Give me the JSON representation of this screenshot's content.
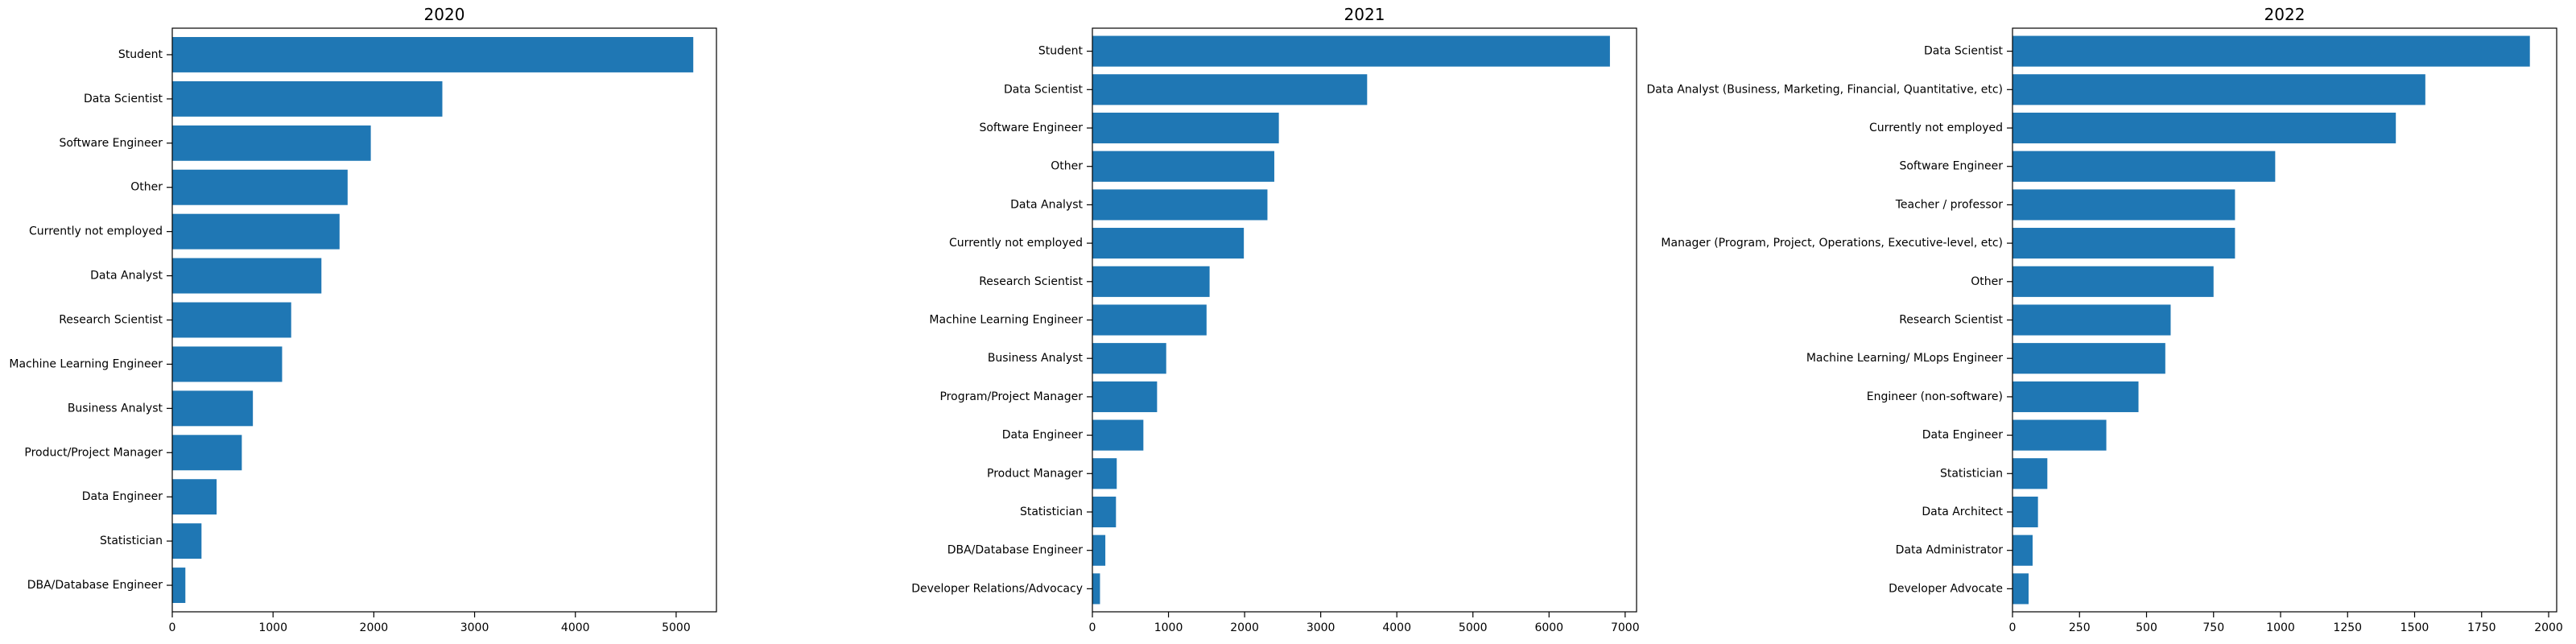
{
  "colors": {
    "bar": "#1f77b4"
  },
  "chart_data": [
    {
      "type": "bar",
      "orientation": "horizontal",
      "title": "2020",
      "xlim": [
        0,
        5400
      ],
      "xticks": [
        0,
        1000,
        2000,
        3000,
        4000,
        5000
      ],
      "categories": [
        "Student",
        "Data Scientist",
        "Software Engineer",
        "Other",
        "Currently not employed",
        "Data Analyst",
        "Research Scientist",
        "Machine Learning Engineer",
        "Business Analyst",
        "Product/Project Manager",
        "Data Engineer",
        "Statistician",
        "DBA/Database Engineer"
      ],
      "values": [
        5170,
        2680,
        1970,
        1740,
        1660,
        1480,
        1180,
        1090,
        800,
        690,
        440,
        290,
        130
      ]
    },
    {
      "type": "bar",
      "orientation": "horizontal",
      "title": "2021",
      "xlim": [
        0,
        7150
      ],
      "xticks": [
        0,
        1000,
        2000,
        3000,
        4000,
        5000,
        6000,
        7000
      ],
      "categories": [
        "Student",
        "Data Scientist",
        "Software Engineer",
        "Other",
        "Data Analyst",
        "Currently not employed",
        "Research Scientist",
        "Machine Learning Engineer",
        "Business Analyst",
        "Program/Project Manager",
        "Data Engineer",
        "Product Manager",
        "Statistician",
        "DBA/Database Engineer",
        "Developer Relations/Advocacy"
      ],
      "values": [
        6800,
        3610,
        2450,
        2390,
        2300,
        1990,
        1540,
        1500,
        970,
        850,
        670,
        320,
        310,
        170,
        100
      ]
    },
    {
      "type": "bar",
      "orientation": "horizontal",
      "title": "2022",
      "xlim": [
        0,
        2030
      ],
      "xticks": [
        0,
        250,
        500,
        750,
        1000,
        1250,
        1500,
        1750,
        2000
      ],
      "categories": [
        "Data Scientist",
        "Data Analyst (Business, Marketing, Financial, Quantitative, etc)",
        "Currently not employed",
        "Software Engineer",
        "Teacher / professor",
        "Manager (Program, Project, Operations, Executive-level, etc)",
        "Other",
        "Research Scientist",
        "Machine Learning/ MLops Engineer",
        "Engineer (non-software)",
        "Data Engineer",
        "Statistician",
        "Data Architect",
        "Data Administrator",
        "Developer Advocate"
      ],
      "values": [
        1930,
        1540,
        1430,
        980,
        830,
        830,
        750,
        590,
        570,
        470,
        350,
        130,
        95,
        75,
        60
      ]
    }
  ]
}
